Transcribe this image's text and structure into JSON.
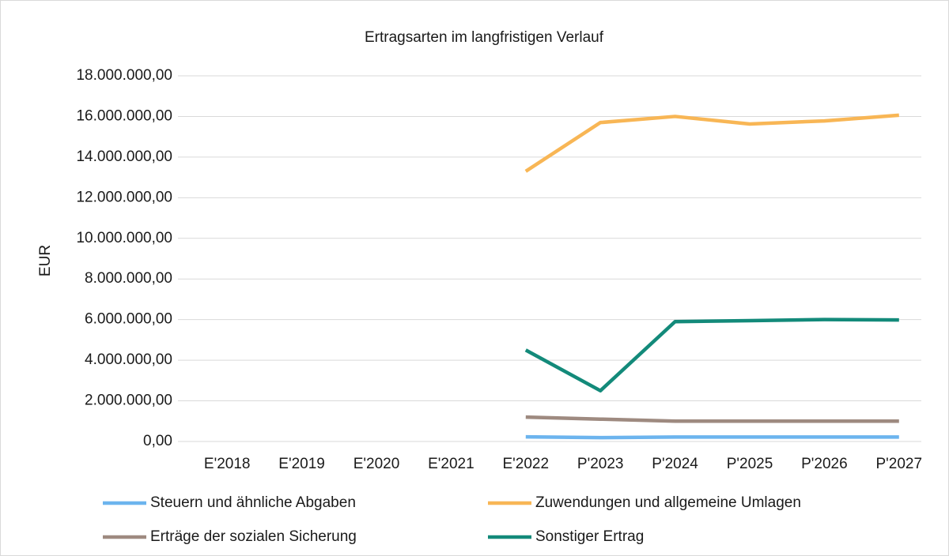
{
  "chart_data": {
    "type": "line",
    "title": "Ertragsarten im langfristigen Verlauf",
    "y_label": "EUR",
    "categories": [
      "E'2018",
      "E'2019",
      "E'2020",
      "E'2021",
      "E'2022",
      "P'2023",
      "P'2024",
      "P'2025",
      "P'2026",
      "P'2027"
    ],
    "series": [
      {
        "name": "Steuern und ähnliche Abgaben",
        "color": "#6cb4ee",
        "values": [
          null,
          null,
          null,
          null,
          230000,
          190000,
          220000,
          220000,
          220000,
          220000
        ]
      },
      {
        "name": "Zuwendungen und allgemeine Umlagen",
        "color": "#f8b655",
        "values": [
          null,
          null,
          null,
          null,
          13300000,
          15700000,
          16000000,
          15630000,
          15780000,
          16060000
        ]
      },
      {
        "name": "Erträge der sozialen Sicherung",
        "color": "#9e8a80",
        "values": [
          null,
          null,
          null,
          null,
          1200000,
          1100000,
          1000000,
          1000000,
          1000000,
          1000000
        ]
      },
      {
        "name": "Sonstiger Ertrag",
        "color": "#138a7a",
        "values": [
          null,
          null,
          null,
          null,
          4500000,
          2500000,
          5900000,
          5950000,
          6000000,
          5980000
        ]
      }
    ],
    "ylim": [
      0,
      18000000
    ],
    "yticks": [
      {
        "value": 0,
        "label": "0,00"
      },
      {
        "value": 2000000,
        "label": "2.000.000,00"
      },
      {
        "value": 4000000,
        "label": "4.000.000,00"
      },
      {
        "value": 6000000,
        "label": "6.000.000,00"
      },
      {
        "value": 8000000,
        "label": "8.000.000,00"
      },
      {
        "value": 10000000,
        "label": "10.000.000,00"
      },
      {
        "value": 12000000,
        "label": "12.000.000,00"
      },
      {
        "value": 14000000,
        "label": "14.000.000,00"
      },
      {
        "value": 16000000,
        "label": "16.000.000,00"
      },
      {
        "value": 18000000,
        "label": "18.000.000,00"
      }
    ],
    "grid": true
  }
}
